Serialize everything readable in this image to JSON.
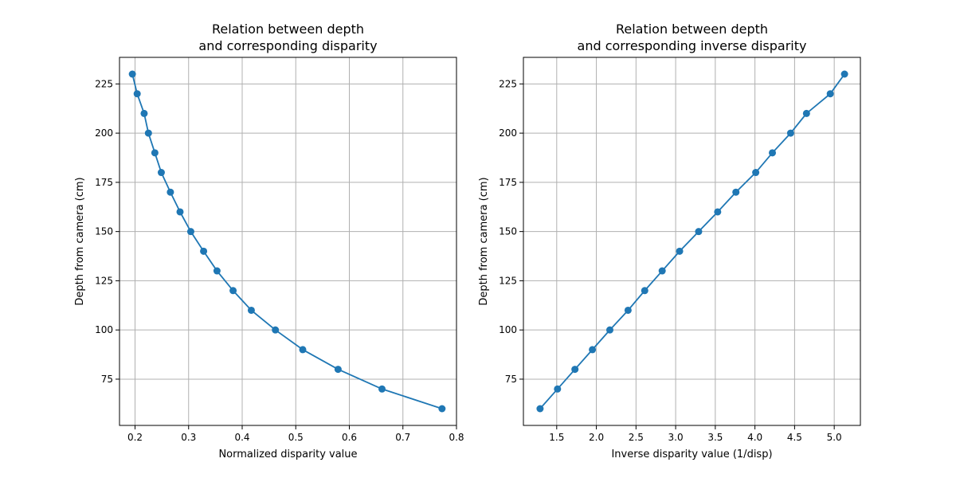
{
  "chart_data": [
    {
      "type": "line",
      "title_line1": "Relation between depth",
      "title_line2": "and corresponding disparity",
      "xlabel": "Normalized disparity value",
      "ylabel": "Depth from camera (cm)",
      "xlim": [
        0.171,
        0.8
      ],
      "ylim": [
        51.5,
        238.5
      ],
      "xticks": [
        0.2,
        0.3,
        0.4,
        0.5,
        0.6,
        0.7,
        0.8
      ],
      "xtick_labels": [
        "0.2",
        "0.3",
        "0.4",
        "0.5",
        "0.6",
        "0.7",
        "0.8"
      ],
      "yticks": [
        75,
        100,
        125,
        150,
        175,
        200,
        225
      ],
      "ytick_labels": [
        "75",
        "100",
        "125",
        "150",
        "175",
        "200",
        "225"
      ],
      "grid": true,
      "color": "#1f77b4",
      "x": [
        0.195,
        0.204,
        0.217,
        0.225,
        0.237,
        0.249,
        0.266,
        0.284,
        0.304,
        0.328,
        0.353,
        0.383,
        0.417,
        0.462,
        0.513,
        0.579,
        0.661,
        0.773
      ],
      "y": [
        230,
        220,
        210,
        200,
        190,
        180,
        170,
        160,
        150,
        140,
        130,
        120,
        110,
        100,
        90,
        80,
        70,
        60
      ]
    },
    {
      "type": "line",
      "title_line1": "Relation between depth",
      "title_line2": "and corresponding inverse disparity",
      "xlabel": "Inverse disparity value (1/disp)",
      "ylabel": "Depth from camera (cm)",
      "xlim": [
        1.08,
        5.33
      ],
      "ylim": [
        51.5,
        238.5
      ],
      "xticks": [
        1.5,
        2.0,
        2.5,
        3.0,
        3.5,
        4.0,
        4.5,
        5.0
      ],
      "xtick_labels": [
        "1.5",
        "2.0",
        "2.5",
        "3.0",
        "3.5",
        "4.0",
        "4.5",
        "5.0"
      ],
      "yticks": [
        75,
        100,
        125,
        150,
        175,
        200,
        225
      ],
      "ytick_labels": [
        "75",
        "100",
        "125",
        "150",
        "175",
        "200",
        "225"
      ],
      "grid": true,
      "color": "#1f77b4",
      "x": [
        1.29,
        1.51,
        1.73,
        1.95,
        2.17,
        2.4,
        2.61,
        2.83,
        3.05,
        3.29,
        3.53,
        3.76,
        4.01,
        4.22,
        4.45,
        4.65,
        4.95,
        5.13
      ],
      "y": [
        60,
        70,
        80,
        90,
        100,
        110,
        120,
        130,
        140,
        150,
        160,
        170,
        180,
        190,
        200,
        210,
        220,
        230
      ]
    }
  ]
}
